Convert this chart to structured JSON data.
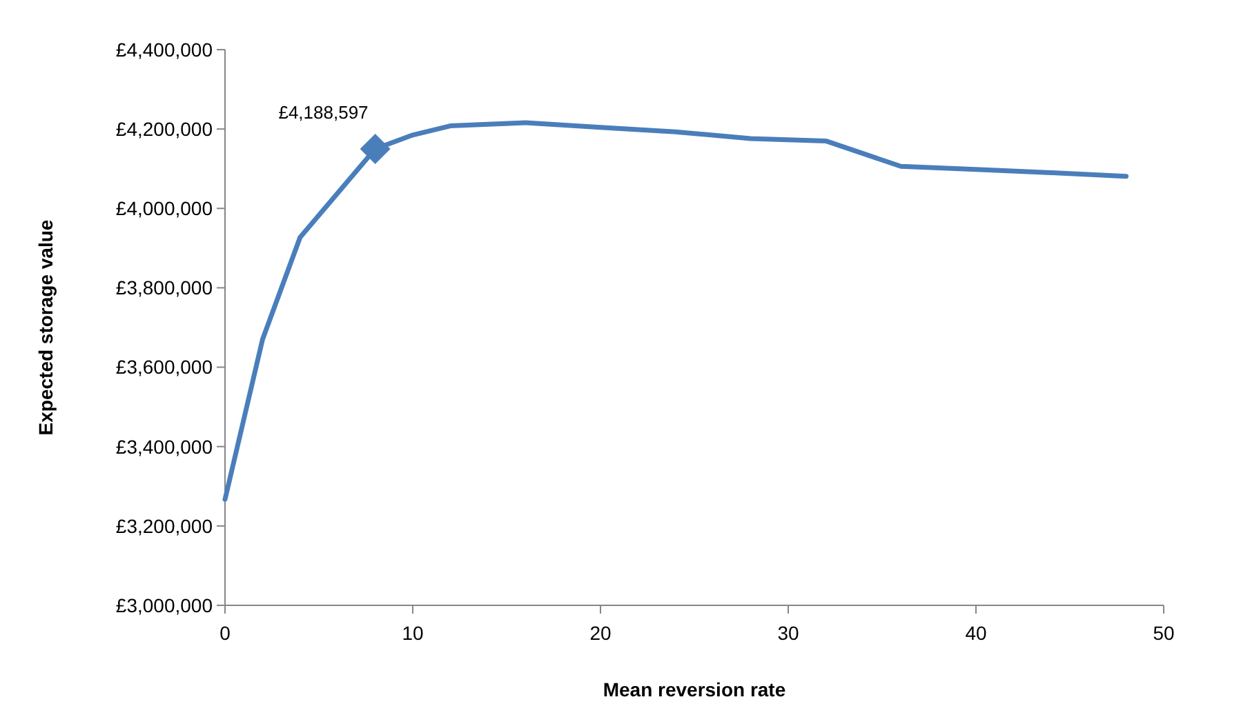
{
  "chart_data": {
    "type": "line",
    "xlabel": "Mean reversion rate",
    "ylabel": "Expected storage value",
    "x": [
      0,
      2,
      4,
      8,
      10,
      12,
      16,
      20,
      24,
      28,
      32,
      36,
      40,
      44,
      48
    ],
    "series": [
      {
        "color": "#4a7ebb",
        "values": [
          3267000,
          3670000,
          3927000,
          4150000,
          4185000,
          4208000,
          4216000,
          4204000,
          4193000,
          4176000,
          4170000,
          4106000,
          4098000,
          4090000,
          4081000
        ]
      },
      {
        "type": "scatter",
        "color": "#4a7ebb",
        "marker": "diamond",
        "x": [
          8
        ],
        "values": [
          4150000
        ]
      }
    ],
    "annotations": [
      "£4,188,597"
    ],
    "xlim": [
      0,
      50
    ],
    "xticks": [
      0,
      10,
      20,
      30,
      40,
      50
    ],
    "ylim": [
      3000000,
      4400000
    ],
    "yticks": [
      {
        "value": 3000000,
        "label": "£3,000,000"
      },
      {
        "value": 3200000,
        "label": "£3,200,000"
      },
      {
        "value": 3400000,
        "label": "£3,400,000"
      },
      {
        "value": 3600000,
        "label": "£3,600,000"
      },
      {
        "value": 3800000,
        "label": "£3,800,000"
      },
      {
        "value": 4000000,
        "label": "£4,000,000"
      },
      {
        "value": 4200000,
        "label": "£4,200,000"
      },
      {
        "value": 4400000,
        "label": "£4,400,000"
      }
    ],
    "grid": false
  }
}
